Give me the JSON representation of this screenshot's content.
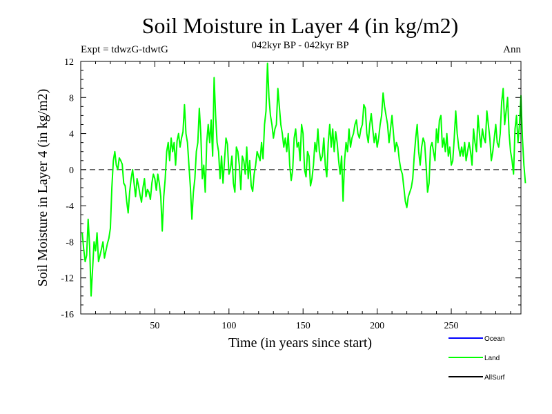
{
  "chart_data": {
    "type": "line",
    "title": "Soil Moisture in Layer 4 (in kg/m2)",
    "subtitle": "042kyr BP - 042kyr BP",
    "expt_label": "Expt = tdwzG-tdwtG",
    "season_label": "Ann",
    "xlabel": "Time (in years since start)",
    "ylabel": "Soil Moisture in Layer 4 (in kg/m2)",
    "xlim": [
      0,
      297
    ],
    "ylim": [
      -16,
      12
    ],
    "x_ticks": [
      50,
      100,
      150,
      200,
      250
    ],
    "x_tick_labels": [
      "50",
      "100",
      "150",
      "200",
      "250"
    ],
    "y_ticks": [
      -16,
      -12,
      -8,
      -4,
      0,
      4,
      8,
      12
    ],
    "y_tick_labels": [
      "-16",
      "-12",
      "-8",
      "-4",
      "0",
      "4",
      "8",
      "12"
    ],
    "zero_line": {
      "y": 0,
      "style": "dashed",
      "color": "#000000"
    },
    "legend": {
      "placement": "bottom-right, below plot",
      "entries": [
        {
          "name": "Ocean",
          "color": "#0000ff"
        },
        {
          "name": "Land",
          "color": "#00ff00"
        },
        {
          "name": "AllSurf",
          "color": "#000000"
        }
      ]
    },
    "series": [
      {
        "name": "Land",
        "color": "#00ff00",
        "x_start": 1,
        "x_step": 1,
        "values": [
          -7.0,
          -8.8,
          -10.2,
          -9.5,
          -5.5,
          -8.5,
          -14.0,
          -11.0,
          -8.0,
          -9.0,
          -7.0,
          -10.2,
          -9.5,
          -8.8,
          -8.0,
          -9.8,
          -9.0,
          -8.2,
          -7.6,
          -6.5,
          -2.0,
          1.0,
          2.0,
          0.5,
          0.0,
          1.3,
          1.0,
          0.6,
          -1.5,
          -1.8,
          -3.5,
          -4.8,
          -2.5,
          -1.0,
          0.0,
          -1.5,
          -3.0,
          -1.0,
          -1.8,
          -2.8,
          -3.6,
          -2.0,
          -1.0,
          -3.0,
          -2.2,
          -2.5,
          -3.3,
          -1.5,
          -0.5,
          -1.0,
          -2.3,
          -0.5,
          -1.5,
          -3.0,
          -6.8,
          -3.0,
          -1.0,
          2.0,
          3.0,
          1.0,
          3.5,
          2.0,
          3.0,
          0.5,
          3.2,
          4.0,
          2.5,
          3.5,
          4.2,
          7.2,
          4.0,
          3.0,
          0.5,
          -2.0,
          -5.5,
          -2.5,
          -1.0,
          2.0,
          3.0,
          6.8,
          4.0,
          -1.0,
          0.5,
          -2.5,
          3.0,
          5.0,
          3.0,
          5.5,
          1.5,
          10.2,
          6.0,
          3.0,
          2.0,
          -1.0,
          1.5,
          -1.5,
          1.0,
          3.5,
          2.8,
          -0.5,
          0.0,
          1.5,
          -1.5,
          -2.5,
          2.5,
          2.0,
          0.5,
          -2.2,
          1.5,
          1.0,
          -0.5,
          2.5,
          -1.0,
          1.0,
          -1.8,
          -2.4,
          -0.5,
          0.5,
          2.0,
          1.5,
          1.0,
          3.0,
          1.2,
          5.0,
          6.5,
          11.8,
          8.0,
          6.0,
          5.0,
          3.5,
          4.5,
          5.0,
          9.0,
          7.0,
          5.0,
          4.0,
          2.5,
          3.5,
          2.0,
          4.0,
          0.5,
          -1.2,
          0.0,
          3.5,
          4.5,
          2.5,
          3.0,
          1.0,
          5.0,
          4.0,
          0.0,
          -0.8,
          2.0,
          1.5,
          -1.8,
          -1.0,
          0.5,
          3.0,
          2.0,
          4.5,
          2.0,
          1.0,
          1.5,
          3.5,
          0.5,
          -0.8,
          3.0,
          5.0,
          2.5,
          4.5,
          2.0,
          4.2,
          3.0,
          1.0,
          -0.5,
          1.5,
          -3.5,
          1.0,
          3.0,
          2.0,
          4.5,
          2.5,
          3.5,
          4.0,
          5.0,
          5.5,
          4.0,
          3.5,
          4.5,
          5.0,
          7.2,
          6.8,
          4.0,
          3.0,
          5.0,
          6.2,
          4.5,
          3.0,
          4.0,
          2.5,
          3.5,
          5.0,
          6.0,
          8.5,
          7.0,
          6.0,
          5.0,
          3.0,
          4.5,
          6.0,
          4.0,
          2.0,
          3.0,
          2.5,
          1.0,
          0.0,
          -0.5,
          -2.0,
          -3.5,
          -4.2,
          -3.0,
          -2.5,
          -2.0,
          -1.0,
          1.5,
          3.5,
          5.0,
          2.0,
          0.5,
          2.5,
          3.5,
          3.0,
          0.5,
          -2.5,
          -1.5,
          2.5,
          3.0,
          2.0,
          1.0,
          4.5,
          3.0,
          5.5,
          6.0,
          2.5,
          3.5,
          2.0,
          4.0,
          1.5,
          2.5,
          0.5,
          1.0,
          3.5,
          6.5,
          4.0,
          2.5,
          1.5,
          2.5,
          1.5,
          3.0,
          1.0,
          2.0,
          3.0,
          2.0,
          0.5,
          4.5,
          3.0,
          2.0,
          6.0,
          4.0,
          2.5,
          4.5,
          3.5,
          3.0,
          6.5,
          5.0,
          3.5,
          1.0,
          2.0,
          3.5,
          5.0,
          3.0,
          2.5,
          4.0,
          7.5,
          9.0,
          5.0,
          6.5,
          8.0,
          4.0,
          2.0,
          1.0,
          -0.5,
          4.5,
          6.0,
          3.0,
          5.0,
          8.2,
          3.5,
          0.5,
          -1.5
        ]
      }
    ]
  }
}
